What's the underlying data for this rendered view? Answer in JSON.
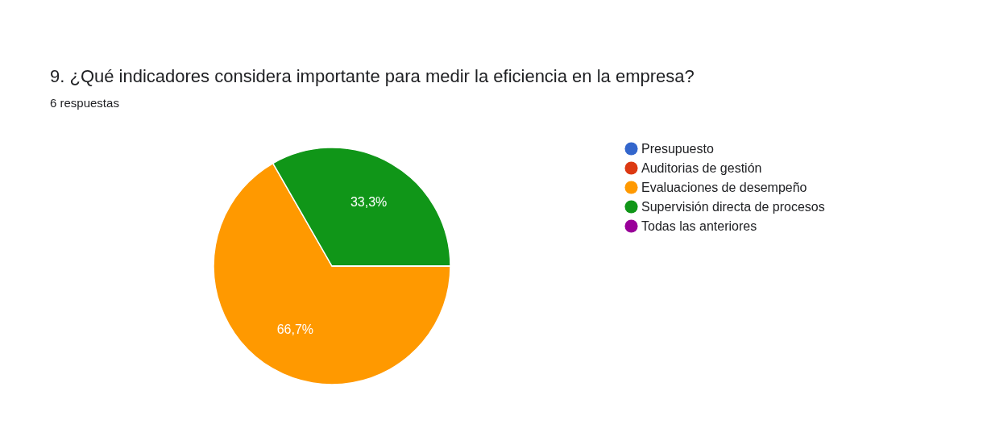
{
  "chart_data": {
    "type": "pie",
    "title": "9. ¿Qué indicadores considera importante para medir la eficiencia en la empresa?",
    "subtitle": "6 respuestas",
    "categories": [
      "Presupuesto",
      "Auditorias de gestión",
      "Evaluaciones de desempeño",
      "Supervisión directa de procesos",
      "Todas las anteriores"
    ],
    "values": [
      0,
      0,
      66.7,
      33.3,
      0
    ],
    "colors": [
      "#3366cc",
      "#dc3912",
      "#ff9900",
      "#109618",
      "#990099"
    ],
    "value_labels": [
      null,
      null,
      "66,7%",
      "33,3%",
      null
    ],
    "legend": "right"
  }
}
